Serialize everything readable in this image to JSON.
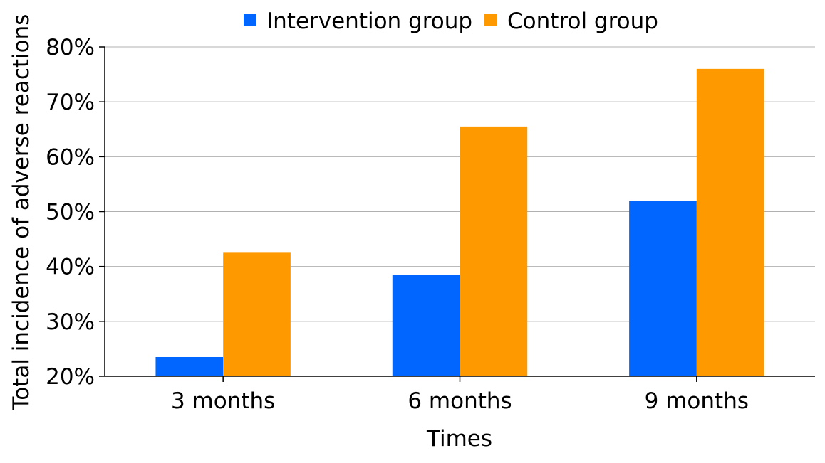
{
  "chart_data": {
    "type": "bar",
    "categories": [
      "3 months",
      "6 months",
      "9 months"
    ],
    "series": [
      {
        "name": "Intervention group",
        "values": [
          23.5,
          38.5,
          52
        ],
        "color": "#0066ff"
      },
      {
        "name": "Control group",
        "values": [
          42.5,
          65.5,
          76
        ],
        "color": "#ff9900"
      }
    ],
    "title": "",
    "xlabel": "Times",
    "ylabel": "Total incidence of adverse reactions",
    "ylim": [
      20,
      80
    ],
    "yticks": [
      20,
      30,
      40,
      50,
      60,
      70,
      80
    ],
    "ytick_labels": [
      "20%",
      "30%",
      "40%",
      "50%",
      "60%",
      "70%",
      "80%"
    ],
    "grid": true,
    "grid_color": "#b0b0b0",
    "legend_position": "top-center"
  }
}
